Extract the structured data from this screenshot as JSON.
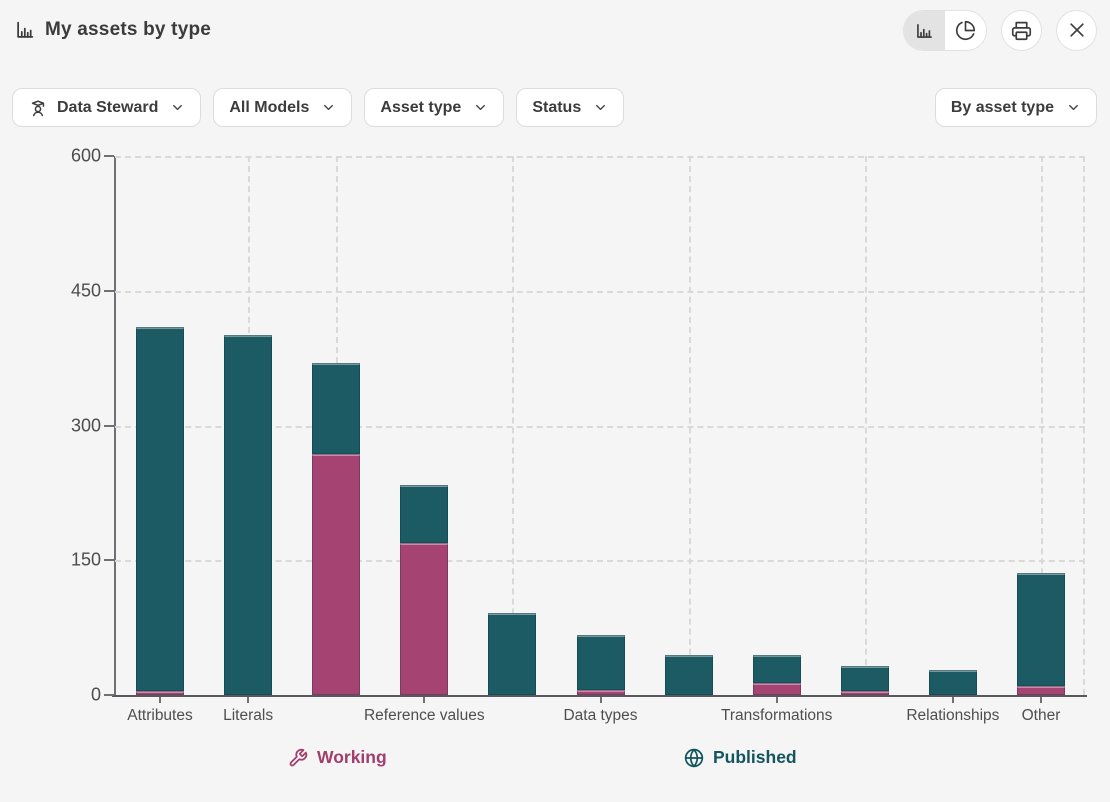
{
  "header": {
    "title": "My assets by type",
    "view_toggle_selected": "bar"
  },
  "filters": {
    "items": [
      {
        "label": "Data Steward",
        "icon": "data-steward-icon"
      },
      {
        "label": "All Models",
        "icon": null
      },
      {
        "label": "Asset type",
        "icon": null
      },
      {
        "label": "Status",
        "icon": null
      }
    ],
    "group_by_label": "By asset type"
  },
  "icons": {
    "title": "bar-chart-icon",
    "toggle": [
      "bar-chart-icon",
      "pie-chart-icon"
    ],
    "actions": [
      "printer-icon",
      "close-icon"
    ],
    "legend": [
      "wrench-icon",
      "globe-icon"
    ]
  },
  "chart_data": {
    "type": "bar",
    "stacked": true,
    "categories": [
      "Attributes",
      "Literals",
      "",
      "Reference values",
      "",
      "Data types",
      "",
      "Transformations",
      "",
      "Relationships",
      "Other"
    ],
    "series": [
      {
        "name": "Working",
        "color": "#a54473",
        "values": [
          4,
          0,
          268,
          169,
          0,
          6,
          0,
          13,
          4,
          0,
          10
        ]
      },
      {
        "name": "Published",
        "color": "#1d5b64",
        "values": [
          406,
          401,
          102,
          65,
          91,
          61,
          45,
          31,
          28,
          28,
          126
        ]
      }
    ],
    "ylim": [
      0,
      600
    ],
    "yticks": [
      0,
      150,
      300,
      450,
      600
    ],
    "grid": "dashed",
    "legend_position": "bottom",
    "vgrid_category_indices": [
      1,
      2,
      4,
      6,
      8,
      10
    ],
    "vgrid_right_edge": true
  },
  "colors": {
    "background": "#f5f5f5",
    "working": "#a54473",
    "published": "#1d5b64",
    "working_text": "#a13e6e",
    "published_text": "#14555f",
    "grid": "#d9d9d9",
    "axis": "#707074",
    "baseline": "#58585c",
    "text": "#3c3c3c",
    "button_border": "#dcdcdc"
  }
}
